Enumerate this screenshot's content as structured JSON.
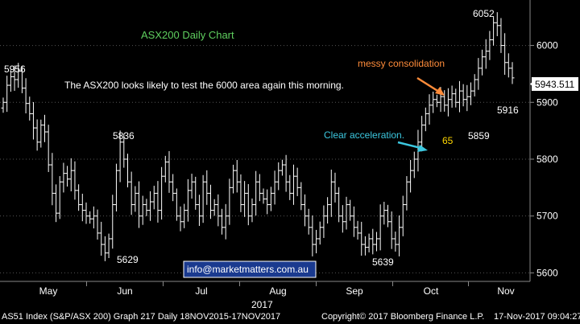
{
  "chart_data": {
    "type": "ohlc",
    "title": "ASX200 Daily Chart",
    "y_ticks": [
      5600,
      5700,
      5800,
      5900,
      6000
    ],
    "ylim": [
      5585,
      6080
    ],
    "x_month_labels": [
      "May",
      "Jun",
      "Jul",
      "Aug",
      "Sep",
      "Oct",
      "Nov"
    ],
    "x_year_label": "2017",
    "last_price": "5943.511",
    "annotations": {
      "commentary": "The ASX200 looks likely to test the 6000 area again this morning.",
      "messy": "messy consolidation",
      "clear": "Clear acceleration.",
      "label_65": "65",
      "website": "info@marketmatters.com.au"
    },
    "price_labels": {
      "p5956": "5956",
      "p5836": "5836",
      "p5629": "5629",
      "p5639": "5639",
      "p5859": "5859",
      "p6052": "6052",
      "p5916": "5916"
    },
    "bars_close": [
      5900,
      5930,
      5945,
      5940,
      5955,
      5925,
      5898,
      5880,
      5855,
      5830,
      5860,
      5848,
      5790,
      5740,
      5705,
      5760,
      5775,
      5765,
      5780,
      5745,
      5720,
      5710,
      5700,
      5695,
      5700,
      5670,
      5650,
      5635,
      5660,
      5720,
      5780,
      5830,
      5800,
      5760,
      5720,
      5740,
      5700,
      5720,
      5710,
      5725,
      5740,
      5710,
      5770,
      5795,
      5760,
      5740,
      5700,
      5690,
      5710,
      5745,
      5760,
      5720,
      5700,
      5760,
      5740,
      5710,
      5720,
      5700,
      5680,
      5700,
      5750,
      5780,
      5760,
      5720,
      5740,
      5700,
      5720,
      5760,
      5740,
      5730,
      5720,
      5740,
      5760,
      5780,
      5790,
      5760,
      5740,
      5770,
      5750,
      5720,
      5700,
      5680,
      5650,
      5660,
      5680,
      5700,
      5720,
      5760,
      5740,
      5700,
      5690,
      5720,
      5700,
      5680,
      5670,
      5650,
      5645,
      5660,
      5650,
      5660,
      5700,
      5710,
      5690,
      5660,
      5650,
      5680,
      5720,
      5760,
      5780,
      5800,
      5830,
      5860,
      5880,
      5895,
      5905,
      5900,
      5910,
      5895,
      5905,
      5915,
      5900,
      5920,
      5905,
      5910,
      5920,
      5940,
      5960,
      5980,
      5990,
      6010,
      6040,
      6035,
      6000,
      5970,
      5960,
      5943
    ]
  },
  "colors": {
    "accent_green": "#5fcf5f",
    "accent_orange": "#ff8c3a",
    "accent_cyan": "#3cc8e0",
    "accent_yellow": "#ffd700"
  },
  "footer": {
    "left": "AS51 Index (S&P/ASX 200) Graph 217 Daily 18NOV2015-17NOV2017",
    "mid": "Copyright© 2017 Bloomberg Finance L.P.",
    "right": "17-Nov-2017 09:04:27"
  }
}
